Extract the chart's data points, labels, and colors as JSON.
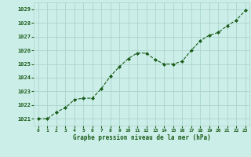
{
  "x": [
    0,
    1,
    2,
    3,
    4,
    5,
    6,
    7,
    8,
    9,
    10,
    11,
    12,
    13,
    14,
    15,
    16,
    17,
    18,
    19,
    20,
    21,
    22,
    23
  ],
  "y": [
    1021.0,
    1021.0,
    1021.5,
    1021.8,
    1022.4,
    1022.5,
    1022.5,
    1023.2,
    1024.1,
    1024.8,
    1025.4,
    1025.8,
    1025.8,
    1025.3,
    1025.0,
    1025.0,
    1025.2,
    1026.0,
    1026.7,
    1027.1,
    1027.3,
    1027.8,
    1028.2,
    1028.9
  ],
  "ylim": [
    1020.5,
    1029.5
  ],
  "yticks": [
    1021,
    1022,
    1023,
    1024,
    1025,
    1026,
    1027,
    1028,
    1029
  ],
  "xticks": [
    0,
    1,
    2,
    3,
    4,
    5,
    6,
    7,
    8,
    9,
    10,
    11,
    12,
    13,
    14,
    15,
    16,
    17,
    18,
    19,
    20,
    21,
    22,
    23
  ],
  "xlabel": "Graphe pression niveau de la mer (hPa)",
  "line_color": "#1a5c1a",
  "marker": "D",
  "marker_size": 2.0,
  "bg_color": "#cceee8",
  "grid_color": "#aad4cc",
  "text_color": "#1a5c1a"
}
